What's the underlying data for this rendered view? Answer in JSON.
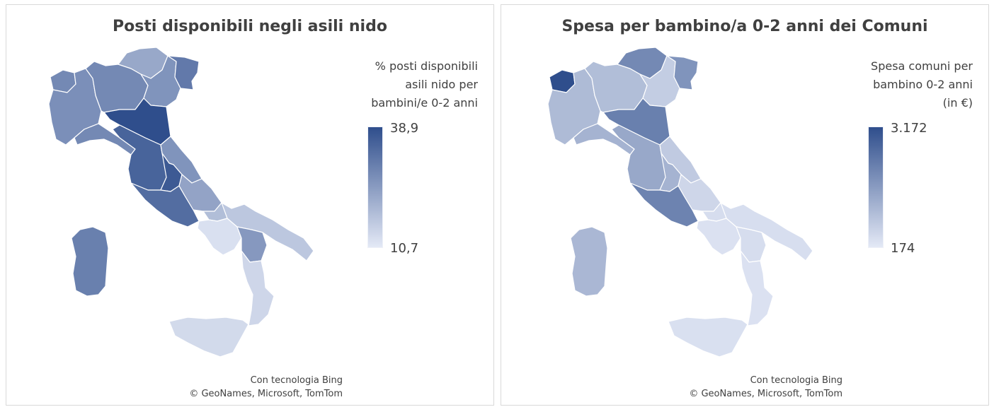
{
  "maps": [
    {
      "title": "Posti disponibili negli asili nido",
      "legend": {
        "title_lines": [
          "% posti disponibili",
          "asili nido per",
          "bambini/e 0-2 anni"
        ],
        "max_label": "38,9",
        "min_label": "10,7",
        "max_color": "#2f4e8c",
        "min_color": "#e4e9f6"
      },
      "credit_lines": [
        "Con tecnologia Bing",
        "© GeoNames, Microsoft, TomTom"
      ],
      "regions": {
        "valle-daosta": 0.62,
        "piemonte": 0.58,
        "liguria": 0.62,
        "lombardia": 0.62,
        "trentino-alto-adige": 0.42,
        "veneto": 0.55,
        "friuli-venezia-giulia": 0.72,
        "emilia-romagna": 1.0,
        "toscana": 0.86,
        "marche": 0.55,
        "umbria": 0.92,
        "lazio": 0.8,
        "abruzzo": 0.45,
        "molise": 0.28,
        "campania": 0.06,
        "puglia": 0.22,
        "basilicata": 0.52,
        "calabria": 0.12,
        "sicilia": 0.1,
        "sardegna": 0.68
      }
    },
    {
      "title": "Spesa per bambino/a 0-2 anni dei Comuni",
      "legend": {
        "title_lines": [
          "Spesa comuni per",
          "bambino 0-2 anni",
          "(in €)"
        ],
        "max_label": "3.172",
        "min_label": "174",
        "max_color": "#2f4e8c",
        "min_color": "#e4e9f6"
      },
      "credit_lines": [
        "Con tecnologia Bing",
        "© GeoNames, Microsoft, TomTom"
      ],
      "regions": {
        "valle-daosta": 1.0,
        "piemonte": 0.3,
        "liguria": 0.35,
        "lombardia": 0.28,
        "trentino-alto-adige": 0.62,
        "veneto": 0.18,
        "friuli-venezia-giulia": 0.55,
        "emilia-romagna": 0.68,
        "toscana": 0.42,
        "marche": 0.2,
        "umbria": 0.35,
        "lazio": 0.66,
        "abruzzo": 0.12,
        "molise": 0.08,
        "campania": 0.05,
        "puglia": 0.07,
        "basilicata": 0.08,
        "calabria": 0.05,
        "sicilia": 0.06,
        "sardegna": 0.32
      }
    }
  ]
}
